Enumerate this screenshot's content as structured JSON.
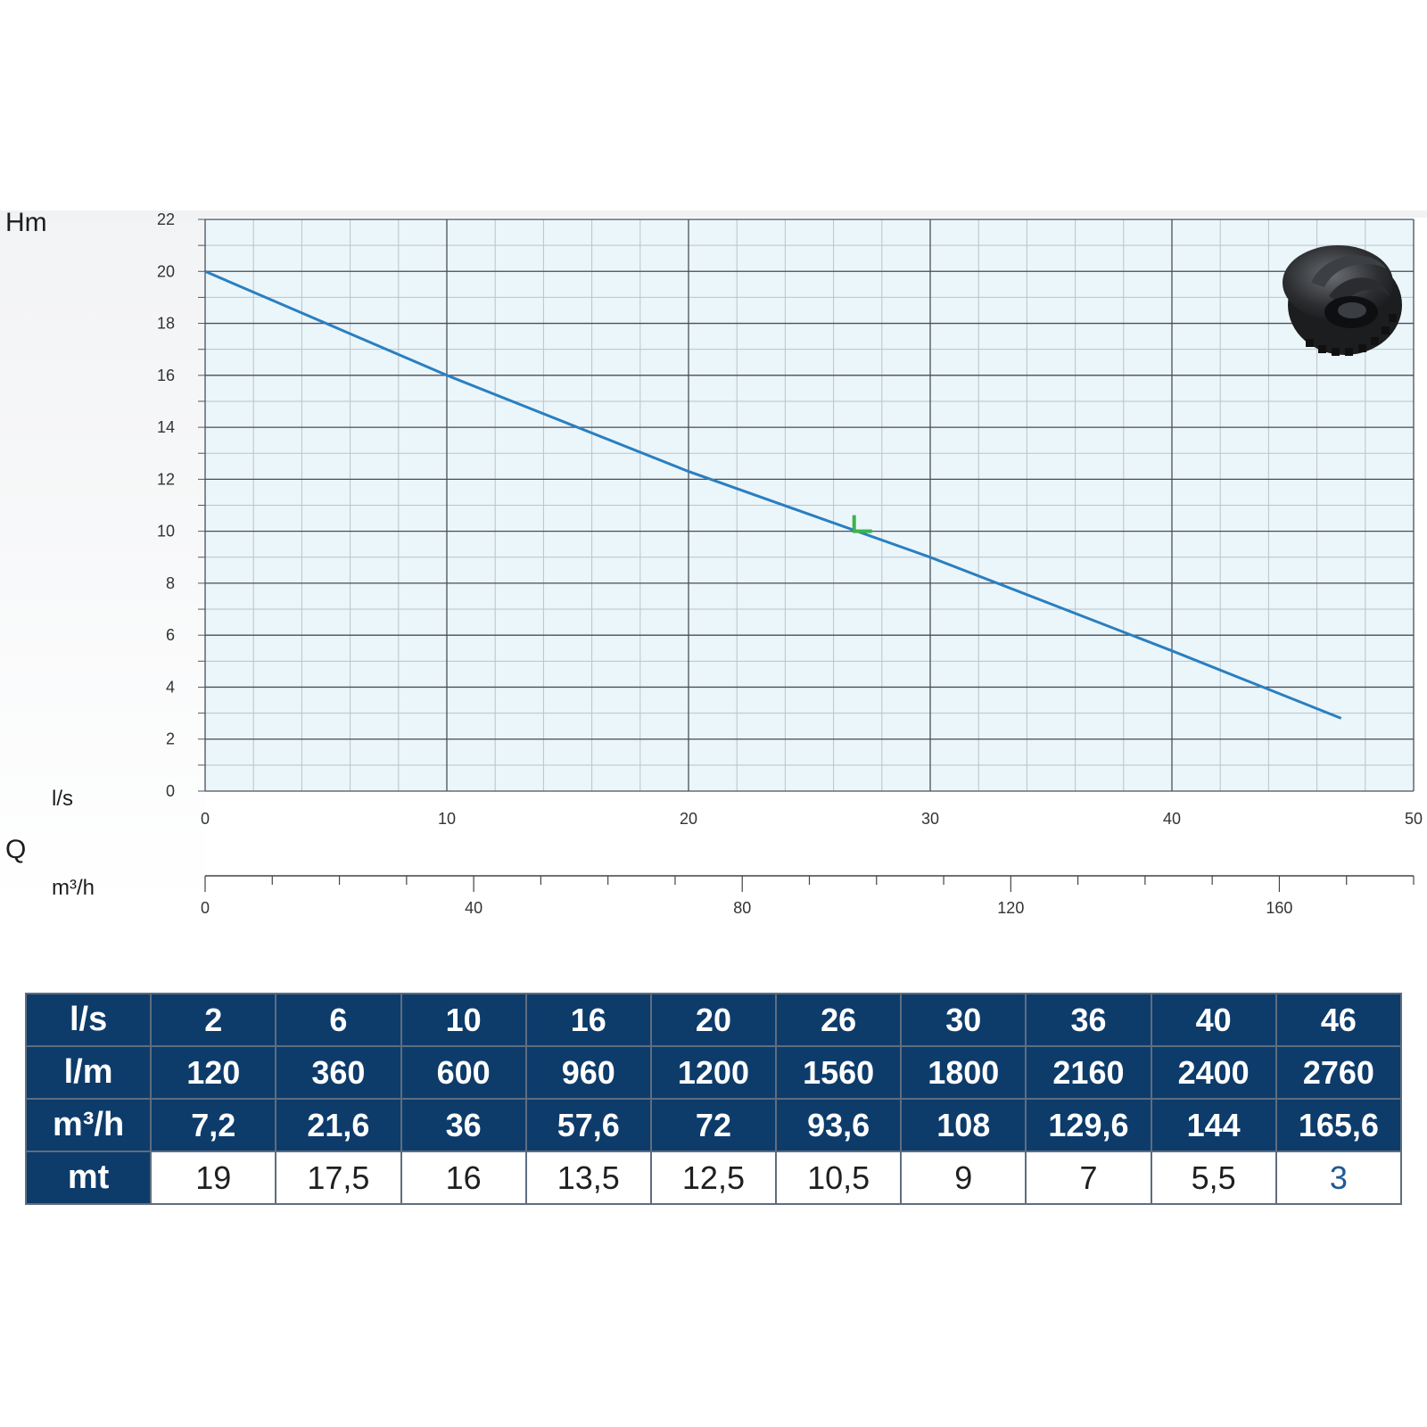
{
  "chart_data": {
    "type": "line",
    "ylabel": "Hm",
    "xlabel": "Q",
    "x_unit_primary": "l/s",
    "x_unit_secondary": "m³/h",
    "ylim": [
      0,
      22
    ],
    "xlim": [
      0,
      50
    ],
    "secondary_xlim": [
      0,
      180
    ],
    "y_ticks": [
      "0",
      "2",
      "4",
      "6",
      "8",
      "10",
      "12",
      "14",
      "16",
      "18",
      "20",
      "22"
    ],
    "x_ticks": [
      "0",
      "10",
      "20",
      "30",
      "40",
      "50"
    ],
    "secondary_x_ticks": [
      "0",
      "40",
      "80",
      "120",
      "160"
    ],
    "grid": true,
    "series": [
      {
        "color": "#2a7fc0",
        "points": [
          [
            0,
            20
          ],
          [
            10,
            16
          ],
          [
            20,
            12.3
          ],
          [
            30,
            9
          ],
          [
            40,
            5.4
          ],
          [
            47,
            2.8
          ]
        ]
      }
    ],
    "marker": {
      "x": 27,
      "y": 10,
      "color": "#3cb34a"
    }
  },
  "table": {
    "rows": [
      {
        "label": "l/s",
        "values": [
          "2",
          "6",
          "10",
          "16",
          "20",
          "26",
          "30",
          "36",
          "40",
          "46"
        ]
      },
      {
        "label": "l/m",
        "values": [
          "120",
          "360",
          "600",
          "960",
          "1200",
          "1560",
          "1800",
          "2160",
          "2400",
          "2760"
        ]
      },
      {
        "label": "m³/h",
        "values": [
          "7,2",
          "21,6",
          "36",
          "57,6",
          "72",
          "93,6",
          "108",
          "129,6",
          "144",
          "165,6"
        ]
      },
      {
        "label": "mt",
        "values": [
          "19",
          "17,5",
          "16",
          "13,5",
          "12,5",
          "10,5",
          "9",
          "7",
          "5,5",
          "3"
        ]
      }
    ]
  },
  "colors": {
    "header_bg": "#0d3c6b",
    "plot_bg": "#ebf6fb",
    "grid_major": "#4a4f57",
    "grid_minor": "#b9c3cb",
    "curve": "#2a7fc0"
  }
}
